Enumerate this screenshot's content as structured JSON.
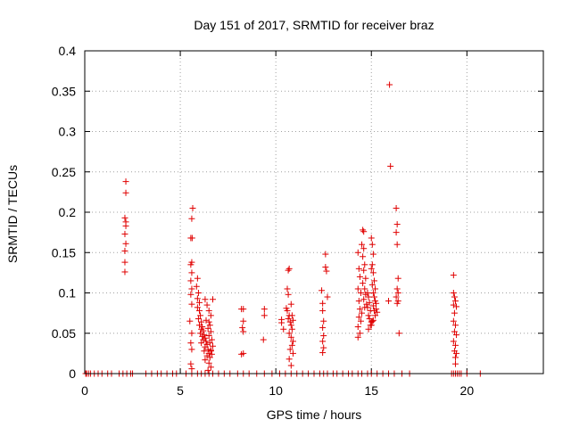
{
  "chart_data": {
    "type": "scatter",
    "title": "Day 151 of 2017, SRMTID for receiver braz",
    "xlabel": "GPS time / hours",
    "ylabel": "SRMTID / TECUs",
    "xlim": [
      0,
      24
    ],
    "ylim": [
      0,
      0.4
    ],
    "xticks": [
      0,
      5,
      10,
      15,
      20
    ],
    "xtick_labels": [
      "0",
      "5",
      "10",
      "15",
      "20"
    ],
    "yticks": [
      0,
      0.05,
      0.1,
      0.15,
      0.2,
      0.25,
      0.3,
      0.35,
      0.4
    ],
    "ytick_labels": [
      "0",
      "0.05",
      "0.1",
      "0.15",
      "0.2",
      "0.25",
      "0.3",
      "0.35",
      "0.4"
    ],
    "grid": true,
    "marker": "+",
    "color": "#e00000",
    "series": [
      {
        "name": "SRMTID",
        "points": [
          [
            0.05,
            0
          ],
          [
            0.1,
            0
          ],
          [
            0.2,
            0
          ],
          [
            0.3,
            0
          ],
          [
            0.5,
            0
          ],
          [
            0.7,
            0
          ],
          [
            0.9,
            0
          ],
          [
            1.2,
            0
          ],
          [
            1.4,
            0
          ],
          [
            1.8,
            0
          ],
          [
            2.0,
            0
          ],
          [
            2.2,
            0
          ],
          [
            2.4,
            0
          ],
          [
            2.5,
            0
          ],
          [
            3.2,
            0
          ],
          [
            3.5,
            0
          ],
          [
            3.8,
            0
          ],
          [
            4.0,
            0
          ],
          [
            4.3,
            0
          ],
          [
            4.6,
            0
          ],
          [
            4.8,
            0
          ],
          [
            5.3,
            0
          ],
          [
            5.6,
            0
          ],
          [
            5.9,
            0
          ],
          [
            6.1,
            0
          ],
          [
            6.3,
            0
          ],
          [
            6.5,
            0
          ],
          [
            6.7,
            0
          ],
          [
            7.0,
            0
          ],
          [
            7.3,
            0
          ],
          [
            7.6,
            0
          ],
          [
            8.0,
            0
          ],
          [
            8.3,
            0
          ],
          [
            8.6,
            0
          ],
          [
            9.0,
            0
          ],
          [
            9.4,
            0
          ],
          [
            9.8,
            0
          ],
          [
            10.2,
            0
          ],
          [
            10.5,
            0
          ],
          [
            10.8,
            0
          ],
          [
            11.1,
            0
          ],
          [
            11.4,
            0
          ],
          [
            11.7,
            0
          ],
          [
            12.0,
            0
          ],
          [
            12.3,
            0
          ],
          [
            12.5,
            0
          ],
          [
            12.7,
            0
          ],
          [
            13.0,
            0
          ],
          [
            13.2,
            0
          ],
          [
            13.5,
            0
          ],
          [
            13.8,
            0
          ],
          [
            14.0,
            0
          ],
          [
            14.3,
            0
          ],
          [
            14.5,
            0
          ],
          [
            14.8,
            0
          ],
          [
            15.0,
            0
          ],
          [
            15.3,
            0
          ],
          [
            15.6,
            0
          ],
          [
            15.9,
            0
          ],
          [
            16.2,
            0
          ],
          [
            16.6,
            0
          ],
          [
            17.0,
            0
          ],
          [
            19.2,
            0
          ],
          [
            19.3,
            0
          ],
          [
            19.4,
            0
          ],
          [
            19.5,
            0
          ],
          [
            19.6,
            0
          ],
          [
            19.7,
            0
          ],
          [
            20.0,
            0
          ],
          [
            20.7,
            0
          ],
          [
            2.15,
            0.238
          ],
          [
            2.15,
            0.224
          ],
          [
            2.1,
            0.193
          ],
          [
            2.15,
            0.188
          ],
          [
            2.15,
            0.183
          ],
          [
            2.1,
            0.173
          ],
          [
            2.15,
            0.161
          ],
          [
            2.1,
            0.152
          ],
          [
            2.1,
            0.138
          ],
          [
            2.1,
            0.126
          ],
          [
            5.65,
            0.205
          ],
          [
            5.6,
            0.192
          ],
          [
            5.62,
            0.168
          ],
          [
            5.55,
            0.168
          ],
          [
            5.6,
            0.138
          ],
          [
            5.55,
            0.135
          ],
          [
            5.6,
            0.125
          ],
          [
            5.55,
            0.115
          ],
          [
            5.6,
            0.105
          ],
          [
            5.55,
            0.098
          ],
          [
            5.6,
            0.086
          ],
          [
            5.5,
            0.065
          ],
          [
            5.6,
            0.05
          ],
          [
            5.55,
            0.038
          ],
          [
            5.6,
            0.03
          ],
          [
            5.55,
            0.012
          ],
          [
            5.6,
            0.006
          ],
          [
            5.9,
            0.118
          ],
          [
            5.85,
            0.108
          ],
          [
            5.95,
            0.1
          ],
          [
            5.9,
            0.093
          ],
          [
            6.0,
            0.088
          ],
          [
            5.9,
            0.082
          ],
          [
            6.0,
            0.078
          ],
          [
            6.05,
            0.072
          ],
          [
            5.95,
            0.068
          ],
          [
            6.1,
            0.064
          ],
          [
            6.0,
            0.06
          ],
          [
            6.15,
            0.058
          ],
          [
            6.1,
            0.055
          ],
          [
            6.2,
            0.053
          ],
          [
            6.05,
            0.05
          ],
          [
            6.25,
            0.048
          ],
          [
            6.15,
            0.046
          ],
          [
            6.3,
            0.044
          ],
          [
            6.2,
            0.042
          ],
          [
            6.35,
            0.04
          ],
          [
            6.1,
            0.038
          ],
          [
            6.4,
            0.036
          ],
          [
            6.3,
            0.033
          ],
          [
            6.45,
            0.03
          ],
          [
            6.25,
            0.028
          ],
          [
            6.5,
            0.025
          ],
          [
            6.4,
            0.022
          ],
          [
            6.55,
            0.02
          ],
          [
            6.3,
            0.017
          ],
          [
            6.5,
            0.013
          ],
          [
            6.6,
            0.008
          ],
          [
            6.45,
            0.004
          ],
          [
            6.3,
            0.092
          ],
          [
            6.4,
            0.085
          ],
          [
            6.5,
            0.078
          ],
          [
            6.6,
            0.072
          ],
          [
            6.35,
            0.066
          ],
          [
            6.55,
            0.06
          ],
          [
            6.45,
            0.056
          ],
          [
            6.6,
            0.052
          ],
          [
            6.5,
            0.047
          ],
          [
            6.65,
            0.042
          ],
          [
            6.55,
            0.038
          ],
          [
            6.7,
            0.034
          ],
          [
            6.6,
            0.029
          ],
          [
            6.65,
            0.024
          ],
          [
            6.5,
            0.064
          ],
          [
            6.7,
            0.092
          ],
          [
            6.6,
            0.028
          ],
          [
            8.2,
            0.08
          ],
          [
            8.3,
            0.08
          ],
          [
            8.3,
            0.065
          ],
          [
            8.25,
            0.057
          ],
          [
            8.3,
            0.052
          ],
          [
            8.2,
            0.024
          ],
          [
            8.3,
            0.025
          ],
          [
            9.4,
            0.08
          ],
          [
            9.4,
            0.072
          ],
          [
            9.35,
            0.042
          ],
          [
            10.3,
            0.063
          ],
          [
            10.3,
            0.067
          ],
          [
            10.4,
            0.055
          ],
          [
            10.6,
            0.105
          ],
          [
            10.65,
            0.098
          ],
          [
            10.7,
            0.13
          ],
          [
            10.65,
            0.128
          ],
          [
            10.55,
            0.081
          ],
          [
            10.6,
            0.078
          ],
          [
            10.8,
            0.086
          ],
          [
            10.7,
            0.072
          ],
          [
            10.65,
            0.068
          ],
          [
            10.75,
            0.064
          ],
          [
            10.8,
            0.06
          ],
          [
            10.85,
            0.055
          ],
          [
            10.7,
            0.05
          ],
          [
            10.8,
            0.045
          ],
          [
            10.9,
            0.04
          ],
          [
            10.85,
            0.035
          ],
          [
            10.75,
            0.03
          ],
          [
            10.9,
            0.025
          ],
          [
            10.7,
            0.018
          ],
          [
            10.8,
            0.01
          ],
          [
            10.85,
            0.072
          ],
          [
            10.9,
            0.066
          ],
          [
            12.4,
            0.103
          ],
          [
            12.45,
            0.087
          ],
          [
            12.45,
            0.078
          ],
          [
            12.5,
            0.065
          ],
          [
            12.45,
            0.057
          ],
          [
            12.5,
            0.047
          ],
          [
            12.45,
            0.04
          ],
          [
            12.5,
            0.032
          ],
          [
            12.45,
            0.026
          ],
          [
            12.6,
            0.148
          ],
          [
            12.6,
            0.132
          ],
          [
            12.65,
            0.127
          ],
          [
            12.7,
            0.095
          ],
          [
            14.3,
            0.15
          ],
          [
            14.35,
            0.13
          ],
          [
            14.4,
            0.12
          ],
          [
            14.3,
            0.105
          ],
          [
            14.45,
            0.1
          ],
          [
            14.35,
            0.09
          ],
          [
            14.4,
            0.08
          ],
          [
            14.5,
            0.075
          ],
          [
            14.35,
            0.07
          ],
          [
            14.45,
            0.065
          ],
          [
            14.3,
            0.058
          ],
          [
            14.4,
            0.05
          ],
          [
            14.3,
            0.045
          ],
          [
            14.55,
            0.178
          ],
          [
            14.6,
            0.176
          ],
          [
            14.5,
            0.16
          ],
          [
            14.6,
            0.155
          ],
          [
            14.55,
            0.145
          ],
          [
            14.65,
            0.135
          ],
          [
            14.6,
            0.128
          ],
          [
            14.7,
            0.118
          ],
          [
            14.55,
            0.112
          ],
          [
            14.65,
            0.105
          ],
          [
            14.7,
            0.098
          ],
          [
            14.6,
            0.092
          ],
          [
            14.75,
            0.086
          ],
          [
            14.65,
            0.082
          ],
          [
            14.8,
            0.1
          ],
          [
            14.85,
            0.095
          ],
          [
            14.9,
            0.088
          ],
          [
            14.8,
            0.082
          ],
          [
            14.95,
            0.078
          ],
          [
            14.85,
            0.072
          ],
          [
            14.9,
            0.068
          ],
          [
            15.0,
            0.064
          ],
          [
            14.95,
            0.06
          ],
          [
            14.85,
            0.055
          ],
          [
            15.0,
            0.168
          ],
          [
            15.05,
            0.16
          ],
          [
            15.1,
            0.148
          ],
          [
            15.05,
            0.135
          ],
          [
            15.0,
            0.13
          ],
          [
            15.1,
            0.125
          ],
          [
            15.15,
            0.115
          ],
          [
            15.05,
            0.11
          ],
          [
            15.2,
            0.105
          ],
          [
            15.1,
            0.1
          ],
          [
            15.15,
            0.095
          ],
          [
            15.2,
            0.09
          ],
          [
            15.25,
            0.087
          ],
          [
            15.1,
            0.084
          ],
          [
            15.25,
            0.08
          ],
          [
            15.15,
            0.078
          ],
          [
            15.3,
            0.076
          ],
          [
            15.2,
            0.072
          ],
          [
            15.1,
            0.066
          ],
          [
            15.05,
            0.065
          ],
          [
            15.0,
            0.06
          ],
          [
            15.95,
            0.358
          ],
          [
            16.0,
            0.257
          ],
          [
            15.9,
            0.09
          ],
          [
            16.3,
            0.205
          ],
          [
            16.35,
            0.185
          ],
          [
            16.3,
            0.175
          ],
          [
            16.35,
            0.16
          ],
          [
            16.4,
            0.118
          ],
          [
            16.35,
            0.105
          ],
          [
            16.4,
            0.1
          ],
          [
            16.3,
            0.095
          ],
          [
            16.4,
            0.09
          ],
          [
            16.35,
            0.087
          ],
          [
            16.45,
            0.05
          ],
          [
            19.3,
            0.122
          ],
          [
            19.3,
            0.1
          ],
          [
            19.35,
            0.095
          ],
          [
            19.4,
            0.09
          ],
          [
            19.3,
            0.085
          ],
          [
            19.45,
            0.083
          ],
          [
            19.35,
            0.075
          ],
          [
            19.3,
            0.065
          ],
          [
            19.4,
            0.06
          ],
          [
            19.35,
            0.052
          ],
          [
            19.45,
            0.048
          ],
          [
            19.3,
            0.04
          ],
          [
            19.4,
            0.035
          ],
          [
            19.35,
            0.028
          ],
          [
            19.45,
            0.025
          ],
          [
            19.4,
            0.02
          ],
          [
            19.4,
            0.012
          ]
        ]
      }
    ]
  }
}
